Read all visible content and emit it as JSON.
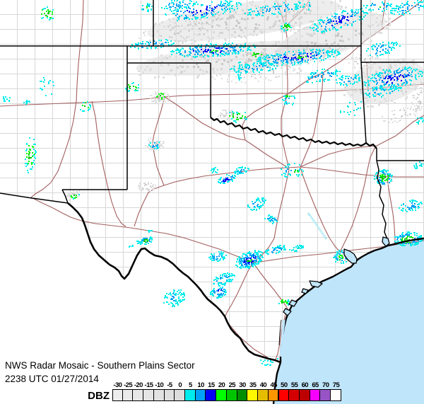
{
  "footer": {
    "title": "NWS Radar Mosaic - Southern Plains Sector",
    "timestamp": "2238 UTC 01/27/2014"
  },
  "legend": {
    "label": "DBZ",
    "entries": [
      {
        "value": "-30",
        "color": "#EDEDED"
      },
      {
        "value": "-25",
        "color": "#EAEAEA"
      },
      {
        "value": "-20",
        "color": "#E7E7E7"
      },
      {
        "value": "-15",
        "color": "#E4E4E4"
      },
      {
        "value": "-10",
        "color": "#E2E2E2"
      },
      {
        "value": "-5",
        "color": "#DFDFDF"
      },
      {
        "value": "0",
        "color": "#DCDCDC"
      },
      {
        "value": "5",
        "color": "#00ECEC"
      },
      {
        "value": "10",
        "color": "#01A0F6"
      },
      {
        "value": "15",
        "color": "#0000F6"
      },
      {
        "value": "20",
        "color": "#00FD00"
      },
      {
        "value": "25",
        "color": "#00C500"
      },
      {
        "value": "30",
        "color": "#008E00"
      },
      {
        "value": "35",
        "color": "#FDF802"
      },
      {
        "value": "40",
        "color": "#E5BC00"
      },
      {
        "value": "45",
        "color": "#FD9500"
      },
      {
        "value": "50",
        "color": "#FD0000"
      },
      {
        "value": "55",
        "color": "#D40000"
      },
      {
        "value": "60",
        "color": "#BC0000"
      },
      {
        "value": "65",
        "color": "#F800FD"
      },
      {
        "value": "70",
        "color": "#9854C6"
      },
      {
        "value": "75",
        "color": "#FDFDFD"
      }
    ]
  },
  "map": {
    "background": "#FFFFFF",
    "water_color": "#BFE5FA",
    "county_line_color": "#D7D7D7",
    "state_border_color": "#000000",
    "highway_color": "#A35E5E",
    "artifact_streak_color": "#A9E9F2"
  },
  "radar": {
    "palettes": {
      "g": [
        "#DFDFDF",
        "#D4D4D4",
        "#C9C9C9"
      ],
      "cy": [
        "#00ECEC",
        "#00E2E2"
      ],
      "cb": [
        "#00ECEC",
        "#01A0F6"
      ],
      "cbd": [
        "#00ECEC",
        "#01A0F6",
        "#0000F6"
      ],
      "cbl": [
        "#00ECEC",
        "#00ECEC",
        "#01A0F6"
      ],
      "cg": [
        "#00ECEC",
        "#00FD00",
        "#00C500"
      ],
      "grn": [
        "#00FD00",
        "#00C500"
      ],
      "mix": [
        "#00ECEC",
        "#01A0F6",
        "#00FD00"
      ],
      "shv": [
        "#00ECEC",
        "#01A0F6",
        "#00FD00",
        "#00C500"
      ],
      "dvs": [
        "#00ECEC",
        "#01A0F6",
        "#00C500",
        "#00FD00"
      ]
    },
    "clusters": [
      [
        "g",
        345,
        28,
        150,
        26,
        -8,
        230,
        1
      ],
      [
        "g",
        330,
        82,
        150,
        22,
        -6,
        210,
        1
      ],
      [
        "g",
        468,
        52,
        88,
        28,
        -18,
        150,
        1
      ],
      [
        "g",
        545,
        115,
        62,
        32,
        -14,
        130,
        1
      ],
      [
        "g",
        250,
        45,
        60,
        22,
        -12,
        80,
        0
      ],
      [
        "g",
        368,
        102,
        70,
        13,
        -5,
        80,
        0
      ],
      [
        "g",
        568,
        160,
        40,
        10,
        -18,
        45,
        0
      ],
      [
        "g",
        225,
        137,
        15,
        9,
        0,
        55,
        0
      ],
      [
        "g",
        219,
        203,
        14,
        9,
        0,
        45,
        0
      ],
      [
        "g",
        207,
        263,
        13,
        8,
        0,
        40,
        0
      ],
      [
        "g",
        322,
        161,
        16,
        7,
        0,
        40,
        0
      ],
      [
        "g",
        404,
        37,
        12,
        8,
        -10,
        35,
        0
      ],
      [
        "g",
        515,
        85,
        24,
        11,
        -14,
        45,
        0
      ],
      [
        "g",
        542,
        250,
        15,
        11,
        0,
        40,
        0
      ],
      [
        "g",
        483,
        362,
        13,
        10,
        0,
        30,
        0
      ],
      [
        "g",
        103,
        275,
        12,
        6,
        -25,
        25,
        0
      ],
      [
        "g",
        592,
        140,
        10,
        18,
        0,
        30,
        0
      ],
      [
        "cbd",
        285,
        14,
        58,
        11,
        -9,
        160,
        0
      ],
      [
        "cb",
        250,
        6,
        28,
        7,
        -8,
        55,
        0
      ],
      [
        "cb",
        388,
        12,
        45,
        8,
        -8,
        85,
        0
      ],
      [
        "cbd",
        480,
        28,
        44,
        12,
        -17,
        140,
        0
      ],
      [
        "cb",
        578,
        10,
        28,
        9,
        -14,
        75,
        0
      ],
      [
        "cbd",
        300,
        70,
        62,
        9,
        -4,
        210,
        0
      ],
      [
        "cbd",
        420,
        80,
        62,
        10,
        -6,
        230,
        0
      ],
      [
        "cb",
        215,
        62,
        33,
        6,
        -6,
        65,
        0
      ],
      [
        "cb",
        360,
        95,
        38,
        7,
        -5,
        75,
        0
      ],
      [
        "cb",
        455,
        106,
        26,
        9,
        -12,
        65,
        0
      ],
      [
        "cb",
        492,
        112,
        18,
        8,
        -10,
        45,
        0
      ],
      [
        "cbd",
        558,
        110,
        44,
        15,
        -10,
        190,
        0
      ],
      [
        "cb",
        538,
        128,
        28,
        8,
        -8,
        55,
        0
      ],
      [
        "cb",
        540,
        68,
        26,
        9,
        -12,
        65,
        0
      ],
      [
        "mix",
        535,
        8,
        22,
        7,
        0,
        38,
        0
      ],
      [
        "mix",
        207,
        10,
        8,
        6,
        0,
        20,
        0
      ],
      [
        "cg",
        404,
        37,
        9,
        6,
        0,
        24,
        0
      ],
      [
        "cb",
        408,
        140,
        10,
        8,
        0,
        24,
        0
      ],
      [
        "cg",
        335,
        164,
        15,
        9,
        0,
        28,
        0
      ],
      [
        "cy",
        338,
        100,
        2,
        15,
        0,
        18,
        0
      ],
      [
        "cg",
        66,
        18,
        11,
        11,
        0,
        28,
        0
      ],
      [
        "cg",
        42,
        218,
        8,
        26,
        4,
        52,
        0
      ],
      [
        "cy",
        8,
        139,
        6,
        4,
        0,
        11,
        0
      ],
      [
        "cy",
        37,
        144,
        5,
        3,
        0,
        8,
        0
      ],
      [
        "cg",
        186,
        122,
        10,
        7,
        0,
        22,
        0
      ],
      [
        "cg",
        120,
        150,
        8,
        8,
        0,
        16,
        0
      ],
      [
        "cy",
        66,
        122,
        12,
        16,
        0,
        16,
        0
      ],
      [
        "cb",
        219,
        204,
        9,
        6,
        0,
        16,
        0
      ],
      [
        "cg",
        104,
        276,
        8,
        4,
        -20,
        12,
        0
      ],
      [
        "dvs",
        206,
        339,
        9,
        5,
        -15,
        42,
        0
      ],
      [
        "cy",
        196,
        342,
        5,
        3,
        0,
        9,
        0
      ],
      [
        "cb",
        185,
        347,
        3,
        2,
        0,
        6,
        0
      ],
      [
        "cy",
        212,
        326,
        4,
        2,
        0,
        6,
        0
      ],
      [
        "cbl",
        245,
        420,
        16,
        12,
        -18,
        80,
        0
      ],
      [
        "cbd",
        352,
        366,
        21,
        11,
        -22,
        200,
        0
      ],
      [
        "cb",
        390,
        352,
        17,
        5,
        -14,
        50,
        0
      ],
      [
        "cy",
        420,
        350,
        11,
        4,
        -8,
        25,
        0
      ],
      [
        "cb",
        307,
        362,
        13,
        7,
        -8,
        45,
        0
      ],
      [
        "cb",
        315,
        394,
        17,
        8,
        -18,
        70,
        0
      ],
      [
        "cbd",
        308,
        412,
        13,
        8,
        -14,
        55,
        0
      ],
      [
        "cb",
        383,
        309,
        10,
        6,
        0,
        32,
        0
      ],
      [
        "cb",
        412,
        240,
        17,
        10,
        0,
        36,
        0
      ],
      [
        "cbd",
        320,
        252,
        13,
        6,
        -18,
        45,
        0
      ],
      [
        "cb",
        340,
        240,
        11,
        5,
        -12,
        34,
        0
      ],
      [
        "cy",
        303,
        240,
        6,
        4,
        0,
        12,
        0
      ],
      [
        "cb",
        362,
        288,
        14,
        8,
        -28,
        50,
        0
      ],
      [
        "shv",
        542,
        250,
        13,
        11,
        0,
        100,
        0
      ],
      [
        "cy",
        592,
        233,
        8,
        5,
        0,
        16,
        0
      ],
      [
        "cb",
        580,
        290,
        17,
        8,
        -8,
        50,
        0
      ],
      [
        "shv",
        577,
        337,
        21,
        10,
        -4,
        120,
        0
      ],
      [
        "mix",
        483,
        362,
        12,
        10,
        0,
        50,
        0
      ],
      [
        "cg",
        400,
        427,
        8,
        7,
        0,
        20,
        0
      ],
      [
        "cy",
        380,
        510,
        14,
        6,
        -8,
        16,
        0
      ],
      [
        "cy",
        500,
        152,
        24,
        10,
        -10,
        18,
        0
      ],
      [
        "cb",
        437,
        8,
        2,
        6,
        0,
        6,
        0
      ],
      [
        "cy",
        592,
        170,
        7,
        5,
        0,
        12,
        0
      ],
      [
        "grn",
        362,
        76,
        9,
        3,
        -5,
        11,
        0
      ],
      [
        "grn",
        424,
        79,
        8,
        3,
        -5,
        9,
        0
      ],
      [
        "grn",
        302,
        71,
        5,
        2,
        0,
        6,
        0
      ],
      [
        "grn",
        227,
        135,
        6,
        4,
        0,
        10,
        0
      ],
      [
        "grn",
        406,
        135,
        3,
        2,
        0,
        5,
        0
      ],
      [
        "grn",
        353,
        368,
        4,
        2,
        0,
        6,
        0
      ],
      [
        "grn",
        418,
        242,
        3,
        2,
        0,
        4,
        0
      ]
    ]
  }
}
